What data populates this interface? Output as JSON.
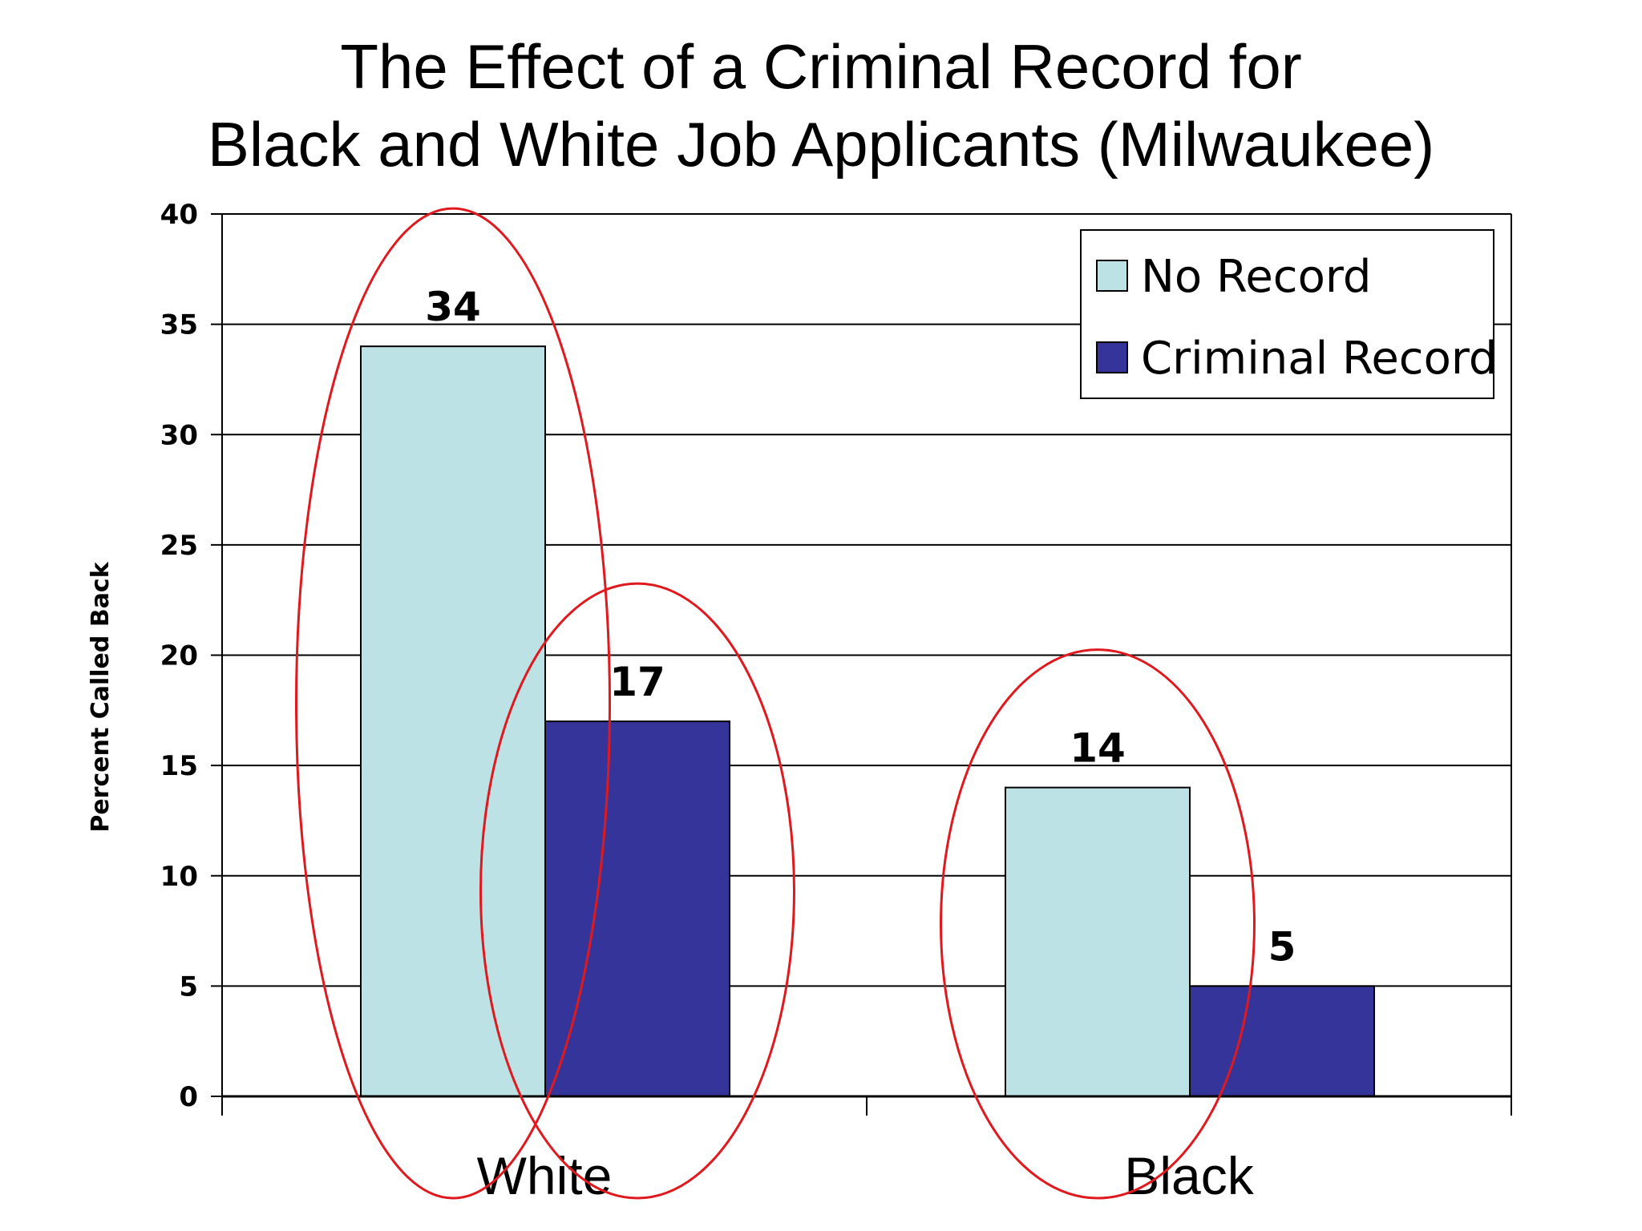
{
  "chart_data": {
    "type": "bar",
    "title": "The Effect of a Criminal Record for Black and White Job Applicants (Milwaukee)",
    "title_lines": [
      "The Effect of a Criminal Record for",
      "Black and White Job Applicants (Milwaukee)"
    ],
    "ylabel": "Percent Called Back",
    "xlabel": "",
    "categories": [
      "White",
      "Black"
    ],
    "series": [
      {
        "name": "No Record",
        "values": [
          34,
          14
        ],
        "color": "#bce2e5"
      },
      {
        "name": "Criminal Record",
        "values": [
          17,
          5
        ],
        "color": "#35349a"
      }
    ],
    "ylim": [
      0,
      40
    ],
    "yticks": [
      0,
      5,
      10,
      15,
      20,
      25,
      30,
      35,
      40
    ],
    "grid": true,
    "legend_position": "top-right",
    "data_labels": true,
    "annotations": "red ellipses highlight White-No Record, White-Criminal Record and Black-No Record bars",
    "annotation_color": "#e0191e"
  }
}
